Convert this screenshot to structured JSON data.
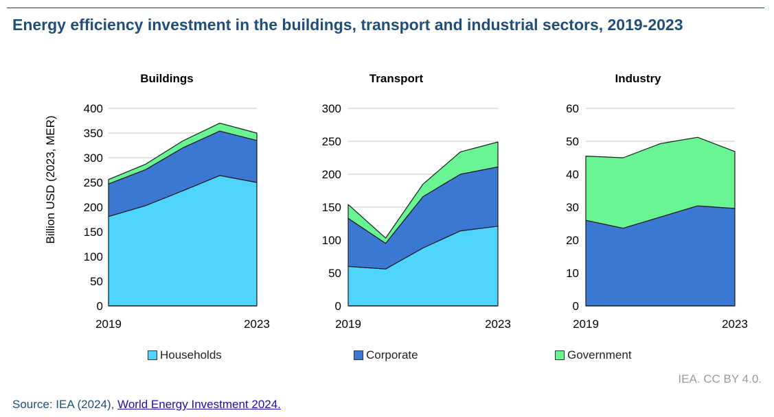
{
  "title": "Energy efficiency investment in the buildings, transport and industrial sectors, 2019-2023",
  "ylabel": "Billion USD (2023, MER)",
  "legend": [
    {
      "name": "Households",
      "color": "#4fd3ff"
    },
    {
      "name": "Corporate",
      "color": "#3a78d4"
    },
    {
      "name": "Government",
      "color": "#6af595"
    }
  ],
  "credit": "IEA. CC BY 4.0.",
  "source": {
    "prefix": "Source: IEA (2024), ",
    "link_text": "World Energy Investment 2024."
  },
  "chart_data": [
    {
      "type": "area",
      "title": "Buildings",
      "x": [
        2019,
        2020,
        2021,
        2022,
        2023
      ],
      "xticks": [
        "2019",
        "2023"
      ],
      "ylim": [
        0,
        400
      ],
      "yticks": [
        0,
        50,
        100,
        150,
        200,
        250,
        300,
        350,
        400
      ],
      "grid": true,
      "stacked": true,
      "series": [
        {
          "name": "Households",
          "values": [
            181,
            203,
            233,
            264,
            250
          ]
        },
        {
          "name": "Corporate",
          "values": [
            66,
            73,
            87,
            90,
            85
          ]
        },
        {
          "name": "Government",
          "values": [
            9,
            11,
            14,
            16,
            15
          ]
        }
      ]
    },
    {
      "type": "area",
      "title": "Transport",
      "x": [
        2019,
        2020,
        2021,
        2022,
        2023
      ],
      "xticks": [
        "2019",
        "2023"
      ],
      "ylim": [
        0,
        300
      ],
      "yticks": [
        0,
        50,
        100,
        150,
        200,
        250,
        300
      ],
      "grid": true,
      "stacked": true,
      "series": [
        {
          "name": "Households",
          "values": [
            60,
            56,
            88,
            114,
            121
          ]
        },
        {
          "name": "Corporate",
          "values": [
            73,
            39,
            78,
            86,
            90
          ]
        },
        {
          "name": "Government",
          "values": [
            21,
            8,
            19,
            34,
            38
          ]
        }
      ]
    },
    {
      "type": "area",
      "title": "Industry",
      "x": [
        2019,
        2020,
        2021,
        2022,
        2023
      ],
      "xticks": [
        "2019",
        "2023"
      ],
      "ylim": [
        0,
        60
      ],
      "yticks": [
        0,
        10,
        20,
        30,
        40,
        50,
        60
      ],
      "grid": true,
      "stacked": true,
      "series": [
        {
          "name": "Households",
          "values": [
            0,
            0,
            0,
            0,
            0
          ]
        },
        {
          "name": "Corporate",
          "values": [
            26,
            23.6,
            27.0,
            30.4,
            29.6
          ]
        },
        {
          "name": "Government",
          "values": [
            19.5,
            21.4,
            22.3,
            20.8,
            17.3
          ]
        }
      ]
    }
  ]
}
